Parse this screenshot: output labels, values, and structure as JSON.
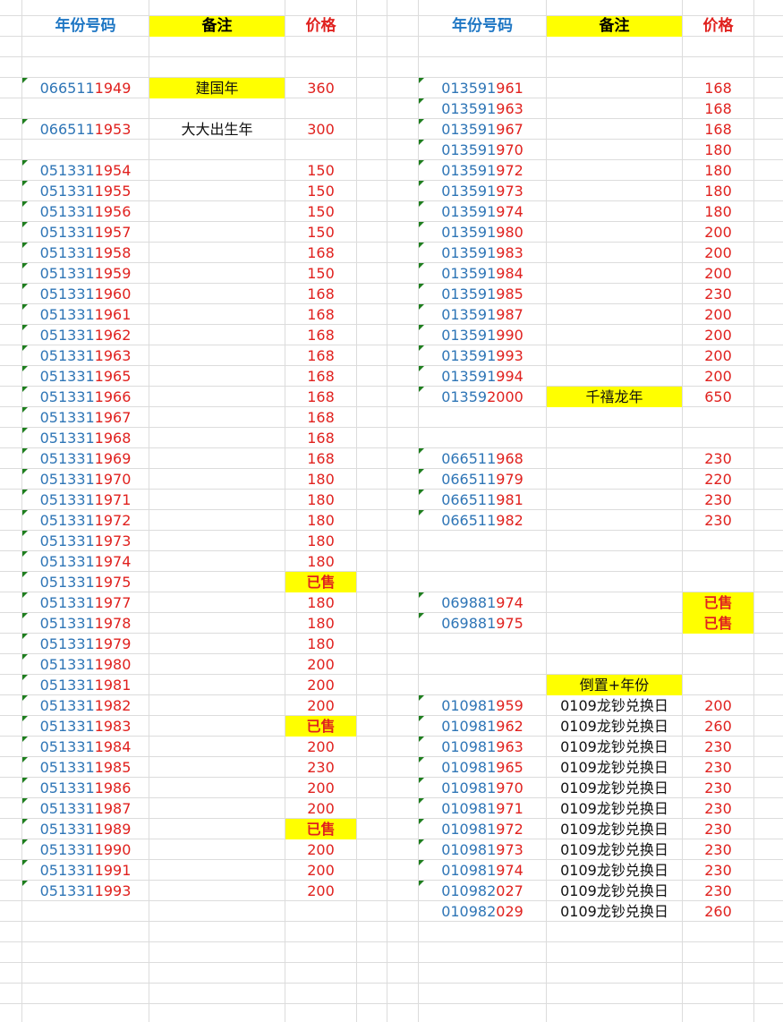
{
  "headers": {
    "number": "年份号码",
    "note": "备注",
    "price": "价格"
  },
  "colors": {
    "number_prefix": "#2e75b6",
    "year_and_price": "#e0211e",
    "highlight": "#ffff00",
    "flag": "#1e7e1e"
  },
  "left_rows": [
    {
      "row": 4,
      "prefix": "066511",
      "year": "1949",
      "note": "建国年",
      "note_highlight": true,
      "price": "360",
      "flag": true
    },
    {
      "row": 6,
      "prefix": "066511",
      "year": "1953",
      "note": "大大出生年",
      "price": "300",
      "flag": true
    },
    {
      "row": 8,
      "prefix": "051331",
      "year": "1954",
      "price": "150",
      "flag": true
    },
    {
      "row": 9,
      "prefix": "051331",
      "year": "1955",
      "price": "150",
      "flag": true
    },
    {
      "row": 10,
      "prefix": "051331",
      "year": "1956",
      "price": "150",
      "flag": true
    },
    {
      "row": 11,
      "prefix": "051331",
      "year": "1957",
      "price": "150",
      "flag": true
    },
    {
      "row": 12,
      "prefix": "051331",
      "year": "1958",
      "price": "168",
      "flag": true
    },
    {
      "row": 13,
      "prefix": "051331",
      "year": "1959",
      "price": "150",
      "flag": true
    },
    {
      "row": 14,
      "prefix": "051331",
      "year": "1960",
      "price": "168",
      "flag": true
    },
    {
      "row": 15,
      "prefix": "051331",
      "year": "1961",
      "price": "168",
      "flag": true
    },
    {
      "row": 16,
      "prefix": "051331",
      "year": "1962",
      "price": "168",
      "flag": true
    },
    {
      "row": 17,
      "prefix": "051331",
      "year": "1963",
      "price": "168",
      "flag": true
    },
    {
      "row": 18,
      "prefix": "051331",
      "year": "1965",
      "price": "168",
      "flag": true
    },
    {
      "row": 19,
      "prefix": "051331",
      "year": "1966",
      "price": "168",
      "flag": true
    },
    {
      "row": 20,
      "prefix": "051331",
      "year": "1967",
      "price": "168",
      "flag": true
    },
    {
      "row": 21,
      "prefix": "051331",
      "year": "1968",
      "price": "168",
      "flag": true
    },
    {
      "row": 22,
      "prefix": "051331",
      "year": "1969",
      "price": "168",
      "flag": true
    },
    {
      "row": 23,
      "prefix": "051331",
      "year": "1970",
      "price": "180",
      "flag": true
    },
    {
      "row": 24,
      "prefix": "051331",
      "year": "1971",
      "price": "180",
      "flag": true
    },
    {
      "row": 25,
      "prefix": "051331",
      "year": "1972",
      "price": "180",
      "flag": true
    },
    {
      "row": 26,
      "prefix": "051331",
      "year": "1973",
      "price": "180",
      "flag": true
    },
    {
      "row": 27,
      "prefix": "051331",
      "year": "1974",
      "price": "180",
      "flag": true
    },
    {
      "row": 28,
      "prefix": "051331",
      "year": "1975",
      "price": "已售",
      "sold": true,
      "flag": true
    },
    {
      "row": 29,
      "prefix": "051331",
      "year": "1977",
      "price": "180",
      "flag": true
    },
    {
      "row": 30,
      "prefix": "051331",
      "year": "1978",
      "price": "180",
      "flag": true
    },
    {
      "row": 31,
      "prefix": "051331",
      "year": "1979",
      "price": "180",
      "flag": true
    },
    {
      "row": 32,
      "prefix": "051331",
      "year": "1980",
      "price": "200",
      "flag": true
    },
    {
      "row": 33,
      "prefix": "051331",
      "year": "1981",
      "price": "200",
      "flag": true
    },
    {
      "row": 34,
      "prefix": "051331",
      "year": "1982",
      "price": "200",
      "flag": true
    },
    {
      "row": 35,
      "prefix": "051331",
      "year": "1983",
      "price": "已售",
      "sold": true,
      "flag": true
    },
    {
      "row": 36,
      "prefix": "051331",
      "year": "1984",
      "price": "200",
      "flag": true
    },
    {
      "row": 37,
      "prefix": "051331",
      "year": "1985",
      "price": "230",
      "flag": true
    },
    {
      "row": 38,
      "prefix": "051331",
      "year": "1986",
      "price": "200",
      "flag": true
    },
    {
      "row": 39,
      "prefix": "051331",
      "year": "1987",
      "price": "200",
      "flag": true
    },
    {
      "row": 40,
      "prefix": "051331",
      "year": "1989",
      "price": "已售",
      "sold": true,
      "flag": true
    },
    {
      "row": 41,
      "prefix": "051331",
      "year": "1990",
      "price": "200",
      "flag": true
    },
    {
      "row": 42,
      "prefix": "051331",
      "year": "1991",
      "price": "200",
      "flag": true
    },
    {
      "row": 43,
      "prefix": "051331",
      "year": "1993",
      "price": "200",
      "flag": true
    }
  ],
  "right_rows": [
    {
      "row": 4,
      "prefix": "013591",
      "year": "961",
      "price": "168",
      "flag": true
    },
    {
      "row": 5,
      "prefix": "013591",
      "year": "963",
      "price": "168",
      "flag": true
    },
    {
      "row": 6,
      "prefix": "013591",
      "year": "967",
      "price": "168",
      "flag": true
    },
    {
      "row": 7,
      "prefix": "013591",
      "year": "970",
      "price": "180",
      "flag": true
    },
    {
      "row": 8,
      "prefix": "013591",
      "year": "972",
      "price": "180",
      "flag": true
    },
    {
      "row": 9,
      "prefix": "013591",
      "year": "973",
      "price": "180",
      "flag": true
    },
    {
      "row": 10,
      "prefix": "013591",
      "year": "974",
      "price": "180",
      "flag": true
    },
    {
      "row": 11,
      "prefix": "013591",
      "year": "980",
      "price": "200",
      "flag": true
    },
    {
      "row": 12,
      "prefix": "013591",
      "year": "983",
      "price": "200",
      "flag": true
    },
    {
      "row": 13,
      "prefix": "013591",
      "year": "984",
      "price": "200",
      "flag": true
    },
    {
      "row": 14,
      "prefix": "013591",
      "year": "985",
      "price": "230",
      "flag": true
    },
    {
      "row": 15,
      "prefix": "013591",
      "year": "987",
      "price": "200",
      "flag": true
    },
    {
      "row": 16,
      "prefix": "013591",
      "year": "990",
      "price": "200",
      "flag": true
    },
    {
      "row": 17,
      "prefix": "013591",
      "year": "993",
      "price": "200",
      "flag": true
    },
    {
      "row": 18,
      "prefix": "013591",
      "year": "994",
      "price": "200",
      "flag": true
    },
    {
      "row": 19,
      "prefix": "01359",
      "year": "2000",
      "note": "千禧龙年",
      "note_highlight": true,
      "price": "650",
      "flag": true
    },
    {
      "row": 22,
      "prefix": "066511",
      "year": "968",
      "price": "230",
      "flag": true
    },
    {
      "row": 23,
      "prefix": "066511",
      "year": "979",
      "price": "220",
      "flag": true
    },
    {
      "row": 24,
      "prefix": "066511",
      "year": "981",
      "price": "230",
      "flag": true
    },
    {
      "row": 25,
      "prefix": "066511",
      "year": "982",
      "price": "230",
      "flag": true
    },
    {
      "row": 29,
      "prefix": "069881",
      "year": "974",
      "price": "已售",
      "sold": true,
      "flag": true
    },
    {
      "row": 30,
      "prefix": "069881",
      "year": "975",
      "price": "已售",
      "sold": true,
      "flag": true
    },
    {
      "row": 33,
      "note": "倒置+年份",
      "note_highlight": true
    },
    {
      "row": 34,
      "prefix": "010981",
      "year": "959",
      "note": "0109龙钞兑换日",
      "price": "200",
      "flag": true
    },
    {
      "row": 35,
      "prefix": "010981",
      "year": "962",
      "note": "0109龙钞兑换日",
      "price": "260",
      "flag": true
    },
    {
      "row": 36,
      "prefix": "010981",
      "year": "963",
      "note": "0109龙钞兑换日",
      "price": "230",
      "flag": true
    },
    {
      "row": 37,
      "prefix": "010981",
      "year": "965",
      "note": "0109龙钞兑换日",
      "price": "230",
      "flag": true
    },
    {
      "row": 38,
      "prefix": "010981",
      "year": "970",
      "note": "0109龙钞兑换日",
      "price": "230",
      "flag": true
    },
    {
      "row": 39,
      "prefix": "010981",
      "year": "971",
      "note": "0109龙钞兑换日",
      "price": "230",
      "flag": true
    },
    {
      "row": 40,
      "prefix": "010981",
      "year": "972",
      "note": "0109龙钞兑换日",
      "price": "230",
      "flag": true
    },
    {
      "row": 41,
      "prefix": "010981",
      "year": "973",
      "note": "0109龙钞兑换日",
      "price": "230",
      "flag": true
    },
    {
      "row": 42,
      "prefix": "010981",
      "year": "974",
      "note": "0109龙钞兑换日",
      "price": "230",
      "flag": true
    },
    {
      "row": 43,
      "prefix": "010982",
      "year": "027",
      "note": "0109龙钞兑换日",
      "price": "230",
      "flag": true
    },
    {
      "row": 44,
      "prefix": "010982",
      "year": "029",
      "note": "0109龙钞兑换日",
      "price": "260",
      "flag": false
    }
  ]
}
